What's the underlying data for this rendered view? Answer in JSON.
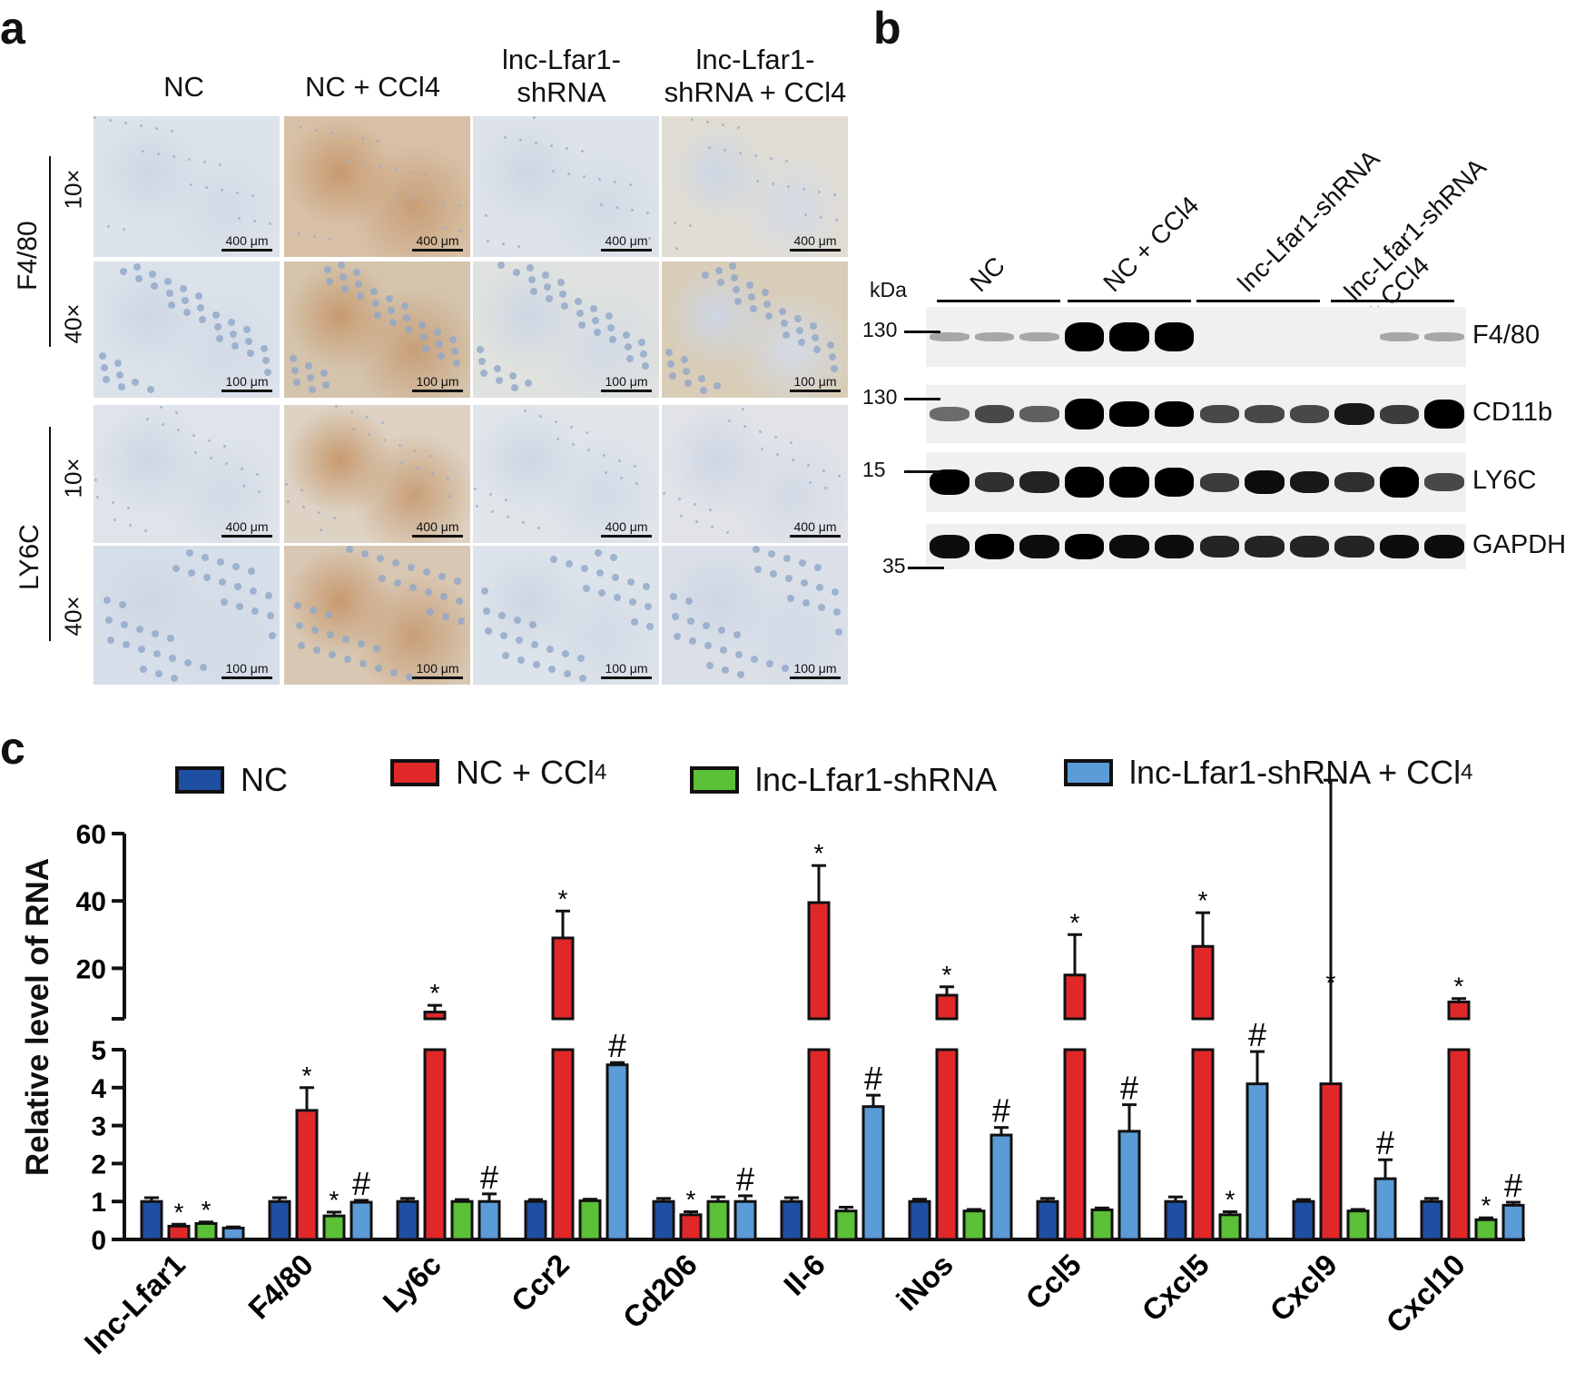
{
  "panels": {
    "a": "a",
    "b": "b",
    "c": "c"
  },
  "panel_a": {
    "columns": [
      "NC",
      "NC + CCl4",
      "lnc-Lfar1-\nshRNA",
      "lnc-Lfar1-\nshRNA + CCl4"
    ],
    "rows": [
      {
        "marker": "F4/80",
        "mags": [
          "10×",
          "40×"
        ]
      },
      {
        "marker": "LY6C",
        "mags": [
          "10×",
          "40×"
        ]
      }
    ],
    "scalebars": {
      "10x": "400 μm",
      "40x": "100 μm"
    }
  },
  "panel_b": {
    "lanes": [
      "NC",
      "NC + CCl4",
      "lnc-Lfar1-shRNA",
      "lnc-Lfar1-shRNA\n+ CCl4"
    ],
    "kda_label": "kDa",
    "blots": [
      {
        "protein": "F4/80",
        "marker": "130"
      },
      {
        "protein": "CD11b",
        "marker": "130"
      },
      {
        "protein": "LY6C",
        "marker": "15"
      },
      {
        "protein": "GAPDH",
        "marker": "35"
      }
    ]
  },
  "colors": {
    "NC": "#1f4fa3",
    "NC_CCl4": "#e0282a",
    "shRNA": "#5bc035",
    "shRNA_CCl4": "#5b9bd8"
  },
  "chart_data": {
    "type": "bar",
    "ylabel": "Relative level of RNA",
    "axis_break": {
      "lower": [
        0,
        5
      ],
      "upper": [
        5,
        60
      ]
    },
    "lower_ticks": [
      "0",
      "1",
      "2",
      "3",
      "4",
      "5"
    ],
    "upper_ticks": [
      "20",
      "40",
      "60"
    ],
    "categories": [
      "lnc-Lfar1",
      "F4/80",
      "Ly6c",
      "Ccr2",
      "Cd206",
      "Il-6",
      "iNos",
      "Ccl5",
      "Cxcl5",
      "Cxcl9",
      "Cxcl10"
    ],
    "series": [
      {
        "name": "NC",
        "values": [
          1.0,
          1.0,
          1.0,
          1.0,
          1.0,
          1.0,
          1.0,
          1.0,
          1.0,
          1.0,
          1.0
        ],
        "errors": [
          0.1,
          0.1,
          0.08,
          0.05,
          0.08,
          0.1,
          0.06,
          0.08,
          0.12,
          0.05,
          0.08
        ]
      },
      {
        "name": "NC + CCl",
        "sub": "4",
        "values": [
          0.35,
          3.4,
          7,
          29,
          0.65,
          39.5,
          12,
          18,
          26.5,
          4.1,
          10
        ],
        "errors": [
          0.05,
          0.6,
          2,
          8,
          0.08,
          11,
          2.5,
          12,
          10,
          8,
          1
        ]
      },
      {
        "name": "lnc-Lfar1-shRNA",
        "values": [
          0.42,
          0.62,
          1.0,
          1.02,
          1.0,
          0.75,
          0.75,
          0.78,
          0.65,
          0.75,
          0.52
        ],
        "errors": [
          0.04,
          0.1,
          0.05,
          0.04,
          0.12,
          0.1,
          0.04,
          0.05,
          0.08,
          0.04,
          0.05
        ]
      },
      {
        "name": "lnc-Lfar1-shRNA + CCl",
        "sub": "4",
        "values": [
          0.3,
          0.98,
          1.0,
          4.6,
          1.0,
          3.5,
          2.75,
          2.85,
          4.1,
          1.6,
          0.9
        ],
        "errors": [
          0.03,
          0.05,
          0.2,
          0.06,
          0.15,
          0.3,
          0.2,
          0.7,
          0.85,
          0.5,
          0.08
        ]
      }
    ],
    "significance": {
      "NC + CCl4": [
        "*",
        "*",
        "*",
        "*",
        "*",
        "*",
        "*",
        "*",
        "*",
        "*",
        "*"
      ],
      "lnc-Lfar1-shRNA": [
        "*",
        "*",
        "",
        "",
        "",
        "",
        "",
        "",
        "*",
        "",
        "*"
      ],
      "lnc-Lfar1-shRNA + CCl4": [
        "",
        "#",
        "#",
        "#",
        "#",
        "#",
        "#",
        "#",
        "#",
        "#",
        "#"
      ]
    }
  }
}
